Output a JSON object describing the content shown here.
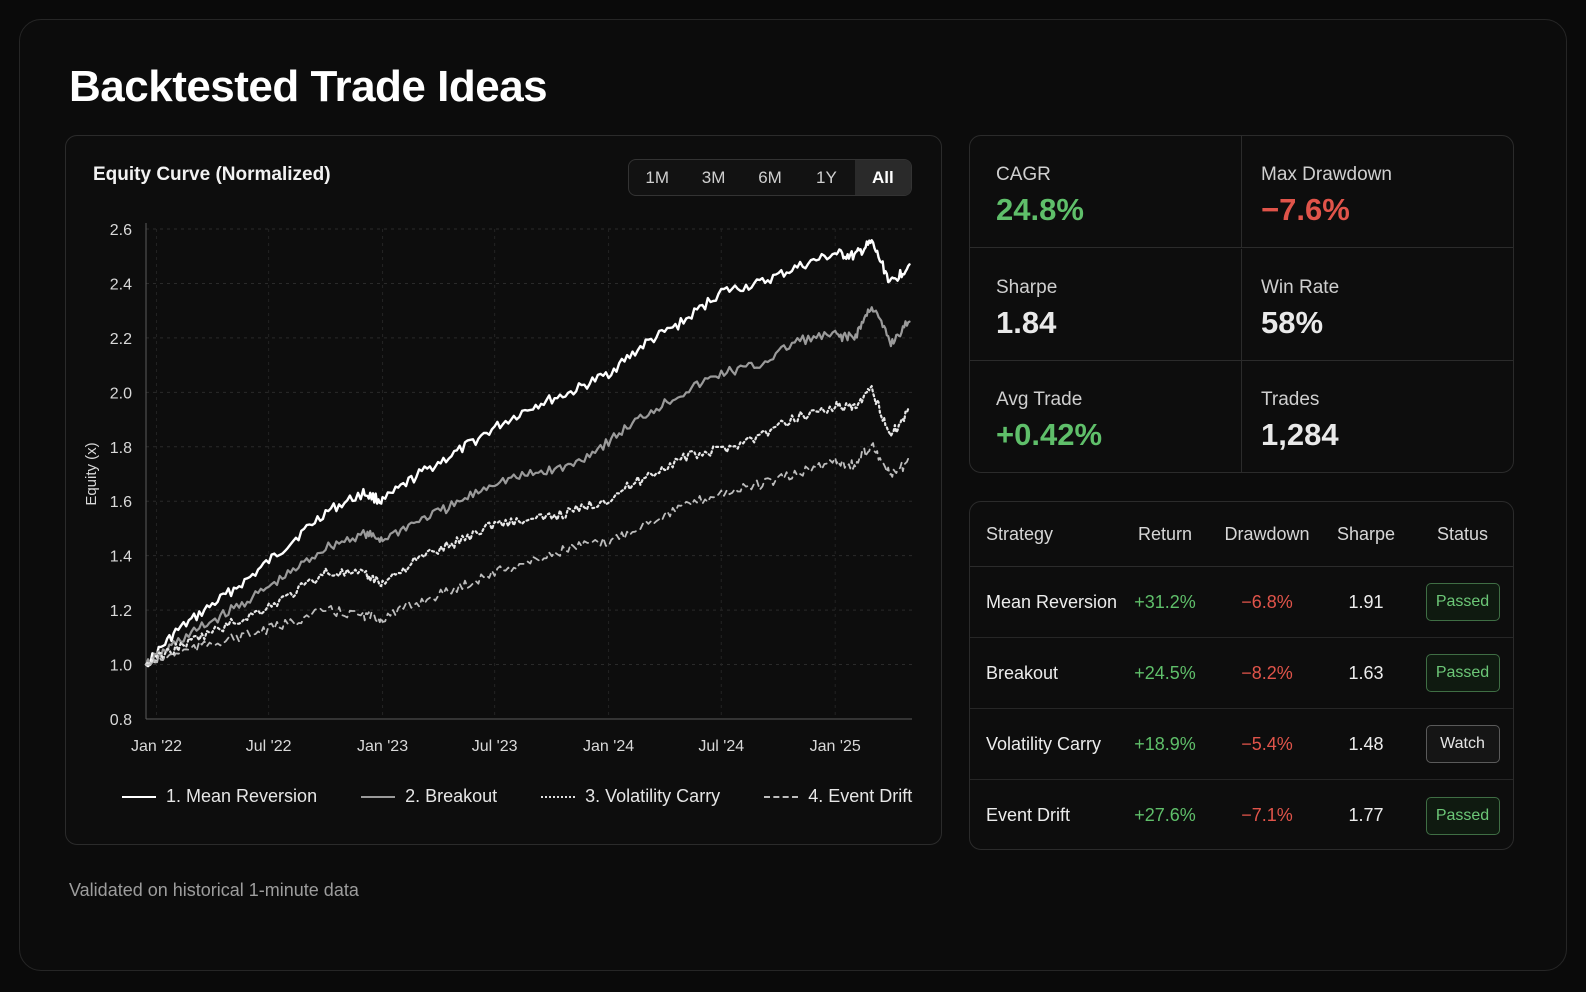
{
  "page": {
    "title": "Backtested Trade Ideas",
    "footnote": "Validated on historical 1-minute data"
  },
  "chart_panel": {
    "title": "Equity Curve (Normalized)",
    "ranges": [
      "1M",
      "3M",
      "6M",
      "1Y",
      "All"
    ],
    "active_range": "All"
  },
  "chart_data": {
    "type": "line",
    "title": "Equity Curve (Normalized)",
    "ylabel": "Equity (x)",
    "xlabel": "",
    "x_ticks": [
      "Jan '22",
      "Jul '22",
      "Jan '23",
      "Jul '23",
      "Jan '24",
      "Jul '24",
      "Jan '25"
    ],
    "y_ticks": [
      0.8,
      1.0,
      1.2,
      1.4,
      1.6,
      1.8,
      2.0,
      2.2,
      2.4,
      2.6
    ],
    "ylim": [
      0.8,
      2.6
    ],
    "xlim": [
      "2021-12-15",
      "2025-05-05"
    ],
    "grid": true,
    "legend": "bottom",
    "x": [
      "2021-12-15",
      "2022-02-01",
      "2022-04-01",
      "2022-06-01",
      "2022-08-01",
      "2022-10-01",
      "2022-12-01",
      "2023-01-01",
      "2023-03-01",
      "2023-05-01",
      "2023-07-01",
      "2023-09-01",
      "2023-11-01",
      "2024-01-01",
      "2024-03-01",
      "2024-05-01",
      "2024-07-01",
      "2024-09-01",
      "2024-11-01",
      "2025-01-01",
      "2025-02-01",
      "2025-03-01",
      "2025-04-01",
      "2025-05-01"
    ],
    "series": [
      {
        "name": "1. Mean Reversion",
        "style": "solid-white",
        "values": [
          1.0,
          1.12,
          1.22,
          1.32,
          1.44,
          1.56,
          1.63,
          1.6,
          1.7,
          1.78,
          1.87,
          1.95,
          2.0,
          2.07,
          2.18,
          2.26,
          2.37,
          2.4,
          2.46,
          2.51,
          2.5,
          2.55,
          2.4,
          2.47
        ]
      },
      {
        "name": "2. Breakout",
        "style": "solid-gray",
        "values": [
          1.0,
          1.08,
          1.16,
          1.24,
          1.33,
          1.43,
          1.48,
          1.46,
          1.53,
          1.59,
          1.67,
          1.7,
          1.73,
          1.82,
          1.92,
          2.0,
          2.07,
          2.1,
          2.19,
          2.21,
          2.2,
          2.32,
          2.18,
          2.26
        ]
      },
      {
        "name": "3. Volatility Carry",
        "style": "dotted",
        "values": [
          1.0,
          1.06,
          1.12,
          1.18,
          1.25,
          1.34,
          1.33,
          1.3,
          1.39,
          1.45,
          1.52,
          1.53,
          1.56,
          1.61,
          1.69,
          1.76,
          1.79,
          1.84,
          1.91,
          1.95,
          1.94,
          2.01,
          1.84,
          1.94
        ]
      },
      {
        "name": "4. Event Drift",
        "style": "dashed",
        "values": [
          1.0,
          1.04,
          1.08,
          1.11,
          1.15,
          1.2,
          1.18,
          1.17,
          1.23,
          1.28,
          1.34,
          1.38,
          1.43,
          1.45,
          1.52,
          1.58,
          1.63,
          1.66,
          1.7,
          1.75,
          1.73,
          1.81,
          1.69,
          1.75
        ]
      }
    ]
  },
  "metrics": {
    "cagr": {
      "label": "CAGR",
      "value": "24.8%"
    },
    "max_drawdown": {
      "label": "Max Drawdown",
      "value": "−7.6%"
    },
    "sharpe": {
      "label": "Sharpe",
      "value": "1.84"
    },
    "win_rate": {
      "label": "Win Rate",
      "value": "58%"
    },
    "avg_trade": {
      "label": "Avg Trade",
      "value": "+0.42%"
    },
    "trades": {
      "label": "Trades",
      "value": "1,284"
    }
  },
  "strategy_table": {
    "headers": {
      "strategy": "Strategy",
      "return": "Return",
      "drawdown": "Drawdown",
      "sharpe": "Sharpe",
      "status": "Status"
    },
    "rows": [
      {
        "strategy": "Mean Reversion",
        "return": "+31.2%",
        "drawdown": "−6.8%",
        "sharpe": "1.91",
        "status": "Passed"
      },
      {
        "strategy": "Breakout",
        "return": "+24.5%",
        "drawdown": "−8.2%",
        "sharpe": "1.63",
        "status": "Passed"
      },
      {
        "strategy": "Volatility Carry",
        "return": "+18.9%",
        "drawdown": "−5.4%",
        "sharpe": "1.48",
        "status": "Watch"
      },
      {
        "strategy": "Event Drift",
        "return": "+27.6%",
        "drawdown": "−7.1%",
        "sharpe": "1.77",
        "status": "Passed"
      }
    ]
  },
  "colors": {
    "positive": "#5fbf6a",
    "negative": "#e0544a",
    "background": "#0a0a0a"
  }
}
